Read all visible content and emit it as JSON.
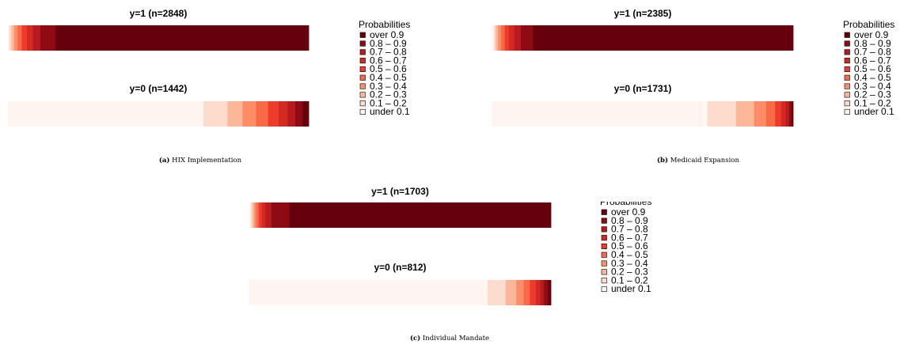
{
  "legend": {
    "title": "Probabilities",
    "items": [
      "over 0.9",
      "0.8 – 0.9",
      "0.7 – 0.8",
      "0.6 – 0.7",
      "0.5 – 0.6",
      "0.4 – 0.5",
      "0.3 – 0.4",
      "0.2 – 0.3",
      "0.1 – 0.2",
      "under 0.1"
    ],
    "colors": [
      "#67000d",
      "#8f0b14",
      "#b81b1e",
      "#d42922",
      "#ef3b2c",
      "#f86948",
      "#fc8d68",
      "#fcb799",
      "#fddccd",
      "#fff5f0"
    ]
  },
  "chart_data": [
    {
      "type": "heatmap",
      "caption_label": "(a)",
      "caption_text": "HIX Implementation",
      "panels": [
        {
          "title": "y=1 (n=2848)",
          "bin_fractions": [
            0.005,
            0.007,
            0.009,
            0.011,
            0.014,
            0.017,
            0.02,
            0.025,
            0.05,
            0.842
          ]
        },
        {
          "title": "y=0 (n=1442)",
          "bin_fractions": [
            0.65,
            0.08,
            0.05,
            0.045,
            0.04,
            0.035,
            0.03,
            0.025,
            0.025,
            0.02
          ]
        }
      ]
    },
    {
      "type": "heatmap",
      "caption_label": "(b)",
      "caption_text": "Medicaid Expansion",
      "panels": [
        {
          "title": "y=1 (n=2385)",
          "bin_fractions": [
            0.005,
            0.006,
            0.008,
            0.01,
            0.012,
            0.014,
            0.018,
            0.022,
            0.04,
            0.865
          ]
        },
        {
          "title": "y=0 (n=1731)",
          "bin_fractions": [
            0.715,
            0.095,
            0.06,
            0.04,
            0.03,
            0.02,
            0.015,
            0.012,
            0.008,
            0.005
          ]
        }
      ]
    },
    {
      "type": "heatmap",
      "caption_label": "(c)",
      "caption_text": "Individual Mandate",
      "panels": [
        {
          "title": "y=1 (n=1703)",
          "bin_fractions": [
            0.005,
            0.005,
            0.006,
            0.007,
            0.008,
            0.01,
            0.012,
            0.02,
            0.06,
            0.867
          ]
        },
        {
          "title": "y=0 (n=812)",
          "bin_fractions": [
            0.79,
            0.06,
            0.035,
            0.025,
            0.02,
            0.02,
            0.015,
            0.012,
            0.013,
            0.01
          ]
        }
      ]
    }
  ]
}
